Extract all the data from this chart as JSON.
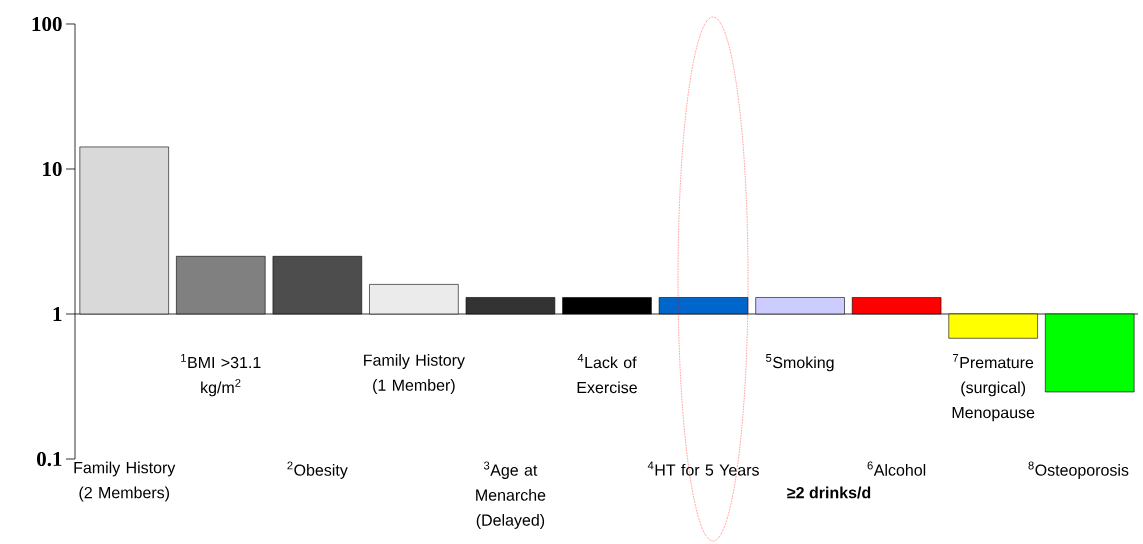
{
  "chart_data": {
    "type": "bar",
    "log": true,
    "categories": [
      "Family History (2 Members)",
      "$^{1}$BMI >31.1 kg/m$^{2}$",
      "$^{2}$Obesity",
      "Family History (1 Member)",
      "$^{3}$Age at Menarche (Delayed)",
      "$^{4}$Lack of Exercise",
      "$^{4}$HT for 5 Years",
      "$^{5}$Smoking",
      "$^{6}$Alcohol",
      "$^{7}$Premature (surgical) Menopause",
      "$^{8}$Osteoporosis"
    ],
    "values": [
      13.2,
      1.5,
      1.5,
      0.6,
      0.3,
      0.3,
      0.3,
      0.3,
      0.3,
      -0.32,
      -0.71
    ],
    "base": [
      1,
      1,
      1,
      1,
      1,
      1,
      1,
      1,
      1,
      1,
      1
    ],
    "colors": [
      "#d9d9d9",
      "#808080",
      "#4d4d4d",
      "#ebebeb",
      "#333333",
      "#000000",
      "#0066cc",
      "#ccccff",
      "#ff0000",
      "#ffff00",
      "#00ff00"
    ],
    "ylim": [
      0.1,
      100
    ],
    "yticks": [
      0.1,
      1,
      10,
      100
    ],
    "annotations": [
      "≥2 drinks/d"
    ]
  }
}
